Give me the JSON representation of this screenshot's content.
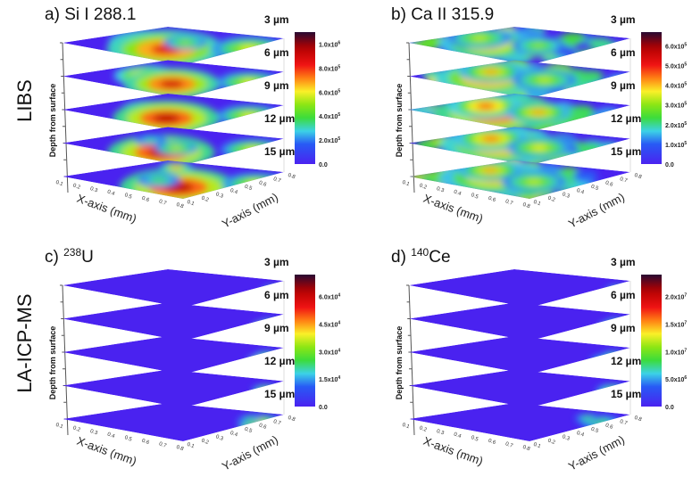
{
  "figure": {
    "row_labels": [
      "LIBS",
      "LA-ICP-MS"
    ]
  },
  "chart_data": [
    {
      "type": "heatmap",
      "panel": "a)",
      "title": "Si I 288.1",
      "title_superscript": "",
      "technique": "LIBS",
      "xlabel": "X-axis (mm)",
      "ylabel": "Y-axis (mm)",
      "zlabel": "Depth from surface",
      "x_ticks": [
        "0.1",
        "0.2",
        "0.3",
        "0.4",
        "0.5",
        "0.6",
        "0.7",
        "0.8"
      ],
      "y_ticks": [
        "0.1",
        "0.2",
        "0.3",
        "0.4",
        "0.5",
        "0.6",
        "0.7",
        "0.8"
      ],
      "xlim": [
        0.1,
        0.8
      ],
      "ylim": [
        0.1,
        0.8
      ],
      "depths": [
        "3 µm",
        "6 µm",
        "9 µm",
        "12 µm",
        "15 µm"
      ],
      "colorbar": {
        "range": [
          0,
          1100000
        ],
        "ticks": [
          {
            "value": 0,
            "base": "0.0",
            "exp": ""
          },
          {
            "value": 200000,
            "base": "2.0x10",
            "exp": "5"
          },
          {
            "value": 400000,
            "base": "4.0x10",
            "exp": "5"
          },
          {
            "value": 600000,
            "base": "6.0x10",
            "exp": "5"
          },
          {
            "value": 800000,
            "base": "8.0x10",
            "exp": "5"
          },
          {
            "value": 1000000,
            "base": "1.0x10",
            "exp": "6"
          }
        ]
      },
      "hotspots": [
        [
          [
            0.3,
            0.45,
            0.35,
            0.75
          ],
          [
            0.55,
            0.35,
            0.55,
            0.9
          ],
          [
            0.85,
            0.8,
            0.35,
            0.6
          ],
          [
            0.45,
            0.65,
            0.2,
            0.5
          ]
        ],
        [
          [
            0.3,
            0.45,
            0.3,
            0.8
          ],
          [
            0.6,
            0.35,
            0.45,
            0.95
          ],
          [
            0.85,
            0.8,
            0.3,
            0.6
          ]
        ],
        [
          [
            0.32,
            0.45,
            0.25,
            0.8
          ],
          [
            0.6,
            0.3,
            0.5,
            1.0
          ],
          [
            0.85,
            0.8,
            0.3,
            0.6
          ]
        ],
        [
          [
            0.6,
            0.25,
            0.5,
            1.0
          ],
          [
            0.55,
            0.45,
            0.2,
            0.55
          ],
          [
            0.88,
            0.8,
            0.3,
            0.6
          ],
          [
            0.25,
            0.55,
            0.15,
            0.35
          ]
        ],
        [
          [
            0.7,
            0.3,
            0.55,
            1.0
          ],
          [
            0.2,
            0.85,
            0.15,
            0.75
          ],
          [
            0.9,
            0.8,
            0.3,
            0.6
          ],
          [
            0.45,
            0.4,
            0.2,
            0.4
          ]
        ]
      ]
    },
    {
      "type": "heatmap",
      "panel": "b)",
      "title": "Ca II 315.9",
      "title_superscript": "",
      "technique": "LIBS",
      "xlabel": "X-axis (mm)",
      "ylabel": "Y-axis (mm)",
      "zlabel": "Depth from surface",
      "x_ticks": [
        "0.1",
        "0.2",
        "0.3",
        "0.4",
        "0.5",
        "0.6",
        "0.7",
        "0.8"
      ],
      "y_ticks": [
        "0.1",
        "0.2",
        "0.3",
        "0.4",
        "0.5",
        "0.6",
        "0.7",
        "0.8"
      ],
      "xlim": [
        0.1,
        0.8
      ],
      "ylim": [
        0.1,
        0.8
      ],
      "depths": [
        "3 µm",
        "6 µm",
        "9 µm",
        "12 µm",
        "15 µm"
      ],
      "colorbar": {
        "range": [
          0,
          670000
        ],
        "ticks": [
          {
            "value": 0,
            "base": "0.0",
            "exp": ""
          },
          {
            "value": 100000,
            "base": "1.0x10",
            "exp": "5"
          },
          {
            "value": 200000,
            "base": "2.0x10",
            "exp": "5"
          },
          {
            "value": 300000,
            "base": "3.0x10",
            "exp": "5"
          },
          {
            "value": 400000,
            "base": "4.0x10",
            "exp": "5"
          },
          {
            "value": 500000,
            "base": "5.0x10",
            "exp": "5"
          },
          {
            "value": 600000,
            "base": "6.0x10",
            "exp": "5"
          }
        ]
      },
      "background_level": 0.45,
      "hotspots": [
        [
          [
            0.35,
            0.35,
            0.45,
            0.75
          ],
          [
            0.15,
            0.5,
            0.3,
            0.55
          ],
          [
            0.55,
            0.6,
            0.25,
            0.5
          ]
        ],
        [
          [
            0.35,
            0.35,
            0.5,
            0.85
          ],
          [
            0.2,
            0.55,
            0.3,
            0.7
          ],
          [
            0.6,
            0.6,
            0.3,
            0.55
          ]
        ],
        [
          [
            0.4,
            0.35,
            0.55,
            1.0
          ],
          [
            0.2,
            0.5,
            0.35,
            0.8
          ],
          [
            0.55,
            0.6,
            0.3,
            0.7
          ]
        ],
        [
          [
            0.4,
            0.4,
            0.55,
            0.85
          ],
          [
            0.2,
            0.55,
            0.35,
            0.75
          ],
          [
            0.6,
            0.55,
            0.3,
            0.6
          ]
        ],
        [
          [
            0.35,
            0.4,
            0.5,
            0.75
          ],
          [
            0.15,
            0.6,
            0.3,
            0.7
          ],
          [
            0.6,
            0.5,
            0.3,
            0.55
          ]
        ]
      ]
    },
    {
      "type": "heatmap",
      "panel": "c)",
      "title": "U",
      "title_superscript": "238",
      "technique": "LA-ICP-MS",
      "xlabel": "X-axis (mm)",
      "ylabel": "Y-axis (mm)",
      "zlabel": "Depth from surface",
      "x_ticks": [
        "0.1",
        "0.2",
        "0.3",
        "0.4",
        "0.5",
        "0.6",
        "0.7",
        "0.8"
      ],
      "y_ticks": [
        "0.1",
        "0.2",
        "0.3",
        "0.4",
        "0.5",
        "0.6",
        "0.7",
        "0.8"
      ],
      "xlim": [
        0.1,
        0.8
      ],
      "ylim": [
        0.1,
        0.8
      ],
      "depths": [
        "3 µm",
        "6 µm",
        "9 µm",
        "12 µm",
        "15 µm"
      ],
      "colorbar": {
        "range": [
          0,
          72000
        ],
        "ticks": [
          {
            "value": 0,
            "base": "0.0",
            "exp": ""
          },
          {
            "value": 15000,
            "base": "1.5x10",
            "exp": "4"
          },
          {
            "value": 30000,
            "base": "3.0x10",
            "exp": "4"
          },
          {
            "value": 45000,
            "base": "4.5x10",
            "exp": "4"
          },
          {
            "value": 60000,
            "base": "6.0x10",
            "exp": "4"
          }
        ]
      },
      "hotspots": [
        [
          [
            0.97,
            0.9,
            0.12,
            0.85
          ],
          [
            0.9,
            0.97,
            0.1,
            0.5
          ]
        ],
        [
          [
            0.96,
            0.85,
            0.14,
            0.85
          ],
          [
            0.88,
            0.96,
            0.1,
            0.45
          ]
        ],
        [
          [
            0.96,
            0.8,
            0.14,
            0.8
          ],
          [
            0.85,
            0.96,
            0.12,
            0.45
          ]
        ],
        [
          [
            0.97,
            0.85,
            0.15,
            0.95
          ],
          [
            0.85,
            0.95,
            0.12,
            0.5
          ]
        ],
        [
          [
            0.97,
            0.75,
            0.18,
            0.95
          ],
          [
            0.8,
            0.95,
            0.2,
            0.6
          ],
          [
            0.7,
            0.98,
            0.1,
            0.4
          ]
        ]
      ]
    },
    {
      "type": "heatmap",
      "panel": "d)",
      "title": "Ce",
      "title_superscript": "140",
      "technique": "LA-ICP-MS",
      "xlabel": "X-axis (mm)",
      "ylabel": "Y-axis (mm)",
      "zlabel": "Depth from surface",
      "x_ticks": [
        "0.1",
        "0.2",
        "0.3",
        "0.4",
        "0.5",
        "0.6",
        "0.7",
        "0.8"
      ],
      "y_ticks": [
        "0.1",
        "0.2",
        "0.3",
        "0.4",
        "0.5",
        "0.6",
        "0.7",
        "0.8"
      ],
      "xlim": [
        0.1,
        0.8
      ],
      "ylim": [
        0.1,
        0.8
      ],
      "depths": [
        "3 µm",
        "6 µm",
        "9 µm",
        "12 µm",
        "15 µm"
      ],
      "colorbar": {
        "range": [
          0,
          24000000
        ],
        "ticks": [
          {
            "value": 0,
            "base": "0.0",
            "exp": ""
          },
          {
            "value": 5000000,
            "base": "5.0x10",
            "exp": "6"
          },
          {
            "value": 10000000,
            "base": "1.0x10",
            "exp": "7"
          },
          {
            "value": 15000000,
            "base": "1.5x10",
            "exp": "7"
          },
          {
            "value": 20000000,
            "base": "2.0x10",
            "exp": "7"
          }
        ]
      },
      "hotspots": [
        [
          [
            0.97,
            0.9,
            0.14,
            0.85
          ],
          [
            0.88,
            0.97,
            0.1,
            0.45
          ]
        ],
        [
          [
            0.96,
            0.85,
            0.14,
            0.8
          ],
          [
            0.88,
            0.96,
            0.12,
            0.4
          ]
        ],
        [
          [
            0.96,
            0.8,
            0.18,
            0.45
          ],
          [
            0.85,
            0.96,
            0.12,
            0.4
          ]
        ],
        [
          [
            0.97,
            0.82,
            0.15,
            0.8
          ],
          [
            0.85,
            0.95,
            0.14,
            0.45
          ]
        ],
        [
          [
            0.97,
            0.9,
            0.12,
            0.7
          ],
          [
            0.8,
            0.9,
            0.2,
            0.4
          ],
          [
            0.65,
            0.95,
            0.12,
            0.4
          ]
        ]
      ]
    }
  ]
}
